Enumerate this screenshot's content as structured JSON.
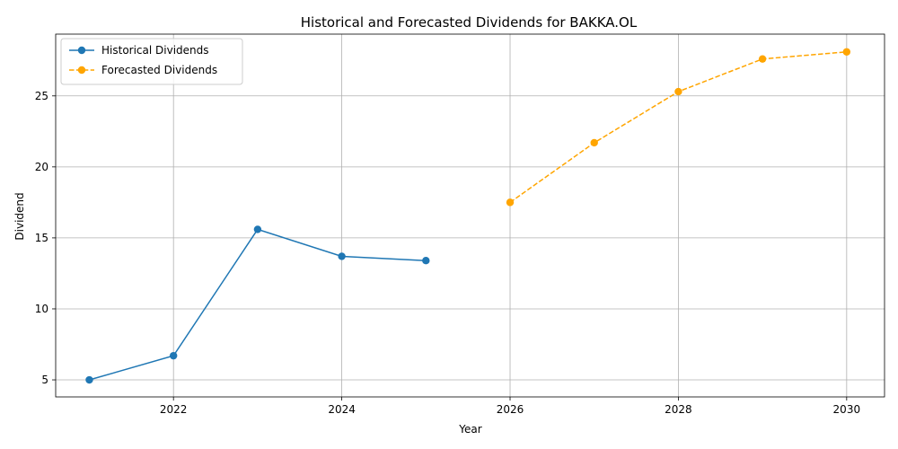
{
  "chart_data": {
    "type": "line",
    "title": "Historical and Forecasted Dividends for BAKKA.OL",
    "xlabel": "Year",
    "ylabel": "Dividend",
    "xlim": [
      2020.6,
      2030.45
    ],
    "ylim": [
      3.8,
      29.35
    ],
    "xticks": [
      2022,
      2024,
      2026,
      2028,
      2030
    ],
    "yticks": [
      5,
      10,
      15,
      20,
      25
    ],
    "grid": true,
    "legend_position": "top-left",
    "series": [
      {
        "name": "Historical Dividends",
        "color": "#1f77b4",
        "line_style": "solid",
        "marker": "circle",
        "x": [
          2021,
          2022,
          2023,
          2024,
          2025
        ],
        "values": [
          5.0,
          6.7,
          15.6,
          13.7,
          13.4
        ]
      },
      {
        "name": "Forecasted Dividends",
        "color": "#ffa500",
        "line_style": "dashed",
        "marker": "circle",
        "x": [
          2026,
          2027,
          2028,
          2029,
          2030
        ],
        "values": [
          17.5,
          21.7,
          25.3,
          27.6,
          28.1
        ]
      }
    ]
  }
}
